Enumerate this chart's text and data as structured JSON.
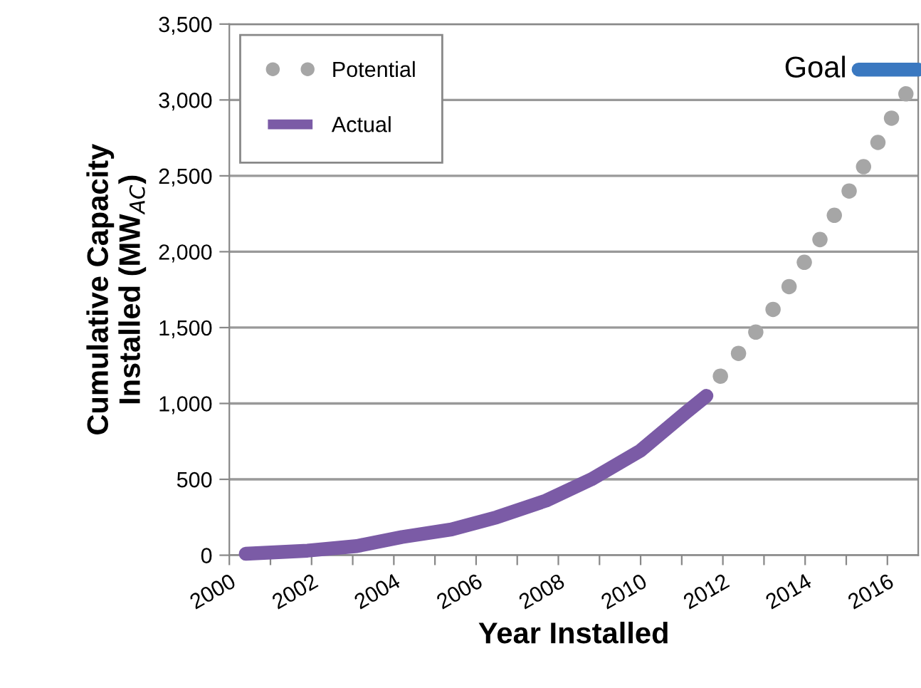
{
  "chart_data": {
    "type": "line",
    "xlabel": "Year Installed",
    "ylabel": "Cumulative Capacity\nInstalled (MW$_{AC}$)",
    "series": [
      {
        "name": "Potential",
        "type": "scatter",
        "color": "#a6a6a6",
        "marker": "circle",
        "x": [
          2011.94,
          2012.38,
          2012.8,
          2013.22,
          2013.61,
          2013.98,
          2014.36,
          2014.71,
          2015.07,
          2015.42,
          2015.77,
          2016.1,
          2016.45
        ],
        "values": [
          1180,
          1330,
          1470,
          1620,
          1770,
          1930,
          2080,
          2240,
          2400,
          2560,
          2720,
          2880,
          3040
        ]
      },
      {
        "name": "Actual",
        "color": "#7b5ba6",
        "x": [
          2000.4,
          2001.9,
          2003.1,
          2004.2,
          2005.4,
          2006.5,
          2007.7,
          2008.8,
          2010.0,
          2011.1,
          2011.6
        ],
        "values": [
          10,
          30,
          60,
          120,
          170,
          250,
          360,
          500,
          690,
          940,
          1050
        ]
      },
      {
        "color": "#3a78c0",
        "x": [
          2015.3,
          2016.75
        ],
        "values": [
          3200,
          3200
        ]
      }
    ],
    "annotations": [
      {
        "text": "Goal",
        "x": 2015.3,
        "y": 3200
      }
    ],
    "xlim": [
      2000,
      2016.75
    ],
    "xticks": [
      2000,
      {
        "value": 2001,
        "label": null
      },
      2002,
      {
        "value": 2003,
        "label": null
      },
      2004,
      {
        "value": 2005,
        "label": null
      },
      2006,
      {
        "value": 2007,
        "label": null
      },
      2008,
      {
        "value": 2009,
        "label": null
      },
      2010,
      {
        "value": 2011,
        "label": null
      },
      2012,
      {
        "value": 2013,
        "label": null
      },
      2014,
      {
        "value": 2015,
        "label": null
      },
      2016
    ],
    "ylim": [
      0,
      3500
    ],
    "yticks": [
      0,
      500,
      {
        "value": 1000,
        "label": "1,000"
      },
      {
        "value": 1500,
        "label": "1,500"
      },
      {
        "value": 2000,
        "label": "2,000"
      },
      {
        "value": 2500,
        "label": "2,500"
      },
      {
        "value": 3000,
        "label": "3,000"
      },
      {
        "value": 3500,
        "label": "3,500"
      }
    ],
    "grid": "y",
    "legend": "top left"
  }
}
